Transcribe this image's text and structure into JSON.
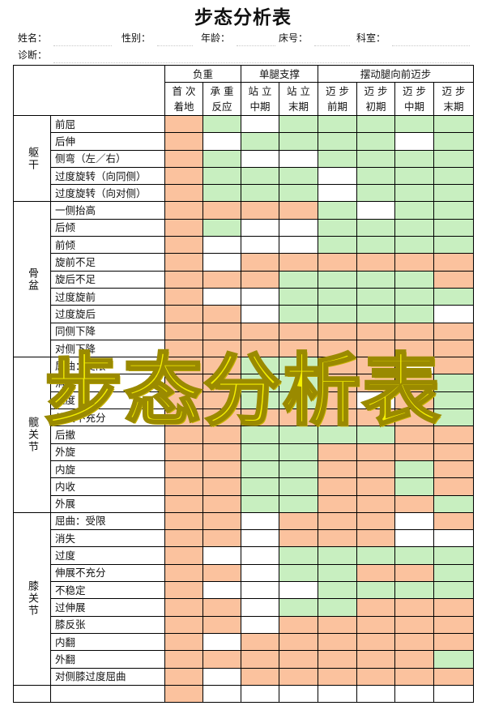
{
  "title": "步态分析表",
  "watermark": "步态分析表",
  "header_fields": {
    "name": "姓名：",
    "sex": "性别：",
    "age": "年龄：",
    "bed": "床号：",
    "dept": "科室：",
    "diagnosis": "诊断："
  },
  "phase_groups": [
    "负重",
    "单腿支撑",
    "摆动腿向前迈步"
  ],
  "phases": [
    [
      "首 次",
      "着地"
    ],
    [
      "承 重",
      "反应"
    ],
    [
      "站 立",
      "中期"
    ],
    [
      "站 立",
      "末期"
    ],
    [
      "迈 步",
      "前期"
    ],
    [
      "迈 步",
      "初期"
    ],
    [
      "迈 步",
      "中期"
    ],
    [
      "迈 步",
      "末期"
    ]
  ],
  "colors": {
    "orange": "#fbc29e",
    "green": "#c8efc0"
  },
  "groups": [
    {
      "name": "躯干",
      "items": [
        "前屈",
        "后伸",
        "侧弯（左／右）",
        "过度旋转（向同侧）",
        "过度旋转（向对侧）"
      ]
    },
    {
      "name": "骨盆",
      "items": [
        "一侧抬高",
        "后倾",
        "前倾",
        "旋前不足",
        "旋后不足",
        "过度旋前",
        "过度旋后",
        "同侧下降",
        "对侧下降"
      ]
    },
    {
      "name": "髋关节",
      "items": [
        "屈曲：受限",
        "消失",
        "过度",
        "伸展不充分",
        "后撤",
        "外旋",
        "内旋",
        "内收",
        "外展"
      ]
    },
    {
      "name": "膝关节",
      "items": [
        "屈曲：受限",
        "消失",
        "过度",
        "伸展不充分",
        "不稳定",
        "过伸展",
        "膝反张",
        "内翻",
        "外翻",
        "对侧膝过度屈曲"
      ]
    }
  ],
  "cells": [
    "ogwggggg",
    "owggggwg",
    "ogwwgggg",
    "ogggwggg",
    "ogggwggg",
    "oooogwgg",
    "ogwwgggg",
    "owwwgggg",
    "owoooooo",
    "oooggggo",
    "owwggggg",
    "oowggggw",
    "oooooooo",
    "oooooooo",
    "ooggoowo",
    "ooggooog",
    "ooggowog",
    "ooooooog",
    "ooggggoo",
    "ooggoooo",
    "ooggoogo",
    "ooggoogo",
    "ooggooog",
    "oowooowo",
    "oowoooww",
    "owwggggg",
    "oowggoog",
    "owwwgggg",
    "oowggooo",
    "oowooooo",
    "owoooooo",
    "ooooooog",
    "owoooooo"
  ]
}
